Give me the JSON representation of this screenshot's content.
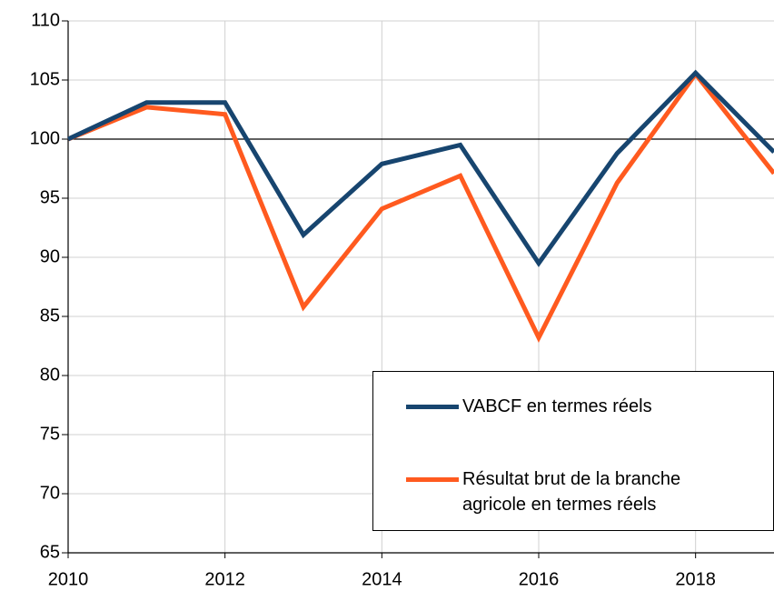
{
  "chart_data": {
    "type": "line",
    "x": [
      2010,
      2011,
      2012,
      2013,
      2014,
      2015,
      2016,
      2017,
      2018,
      2019
    ],
    "series": [
      {
        "name": "VABCF en termes réels",
        "color": "#17456f",
        "values": [
          100,
          103.1,
          103.1,
          91.9,
          97.9,
          99.5,
          89.5,
          98.8,
          105.6,
          98.9
        ]
      },
      {
        "name": "Résultat brut de la branche agricole en termes réels",
        "color": "#ff5a1f",
        "values": [
          100,
          102.7,
          102.1,
          85.8,
          94.1,
          96.9,
          83.2,
          96.3,
          105.5,
          97.1
        ]
      }
    ],
    "xlim": [
      2010,
      2019
    ],
    "xticks": [
      2010,
      2012,
      2014,
      2016,
      2018
    ],
    "ylim": [
      65,
      110
    ],
    "yticks": [
      65,
      70,
      75,
      80,
      85,
      90,
      95,
      100,
      105,
      110
    ],
    "reference_line": 100,
    "grid": true,
    "legend": "lower right"
  }
}
